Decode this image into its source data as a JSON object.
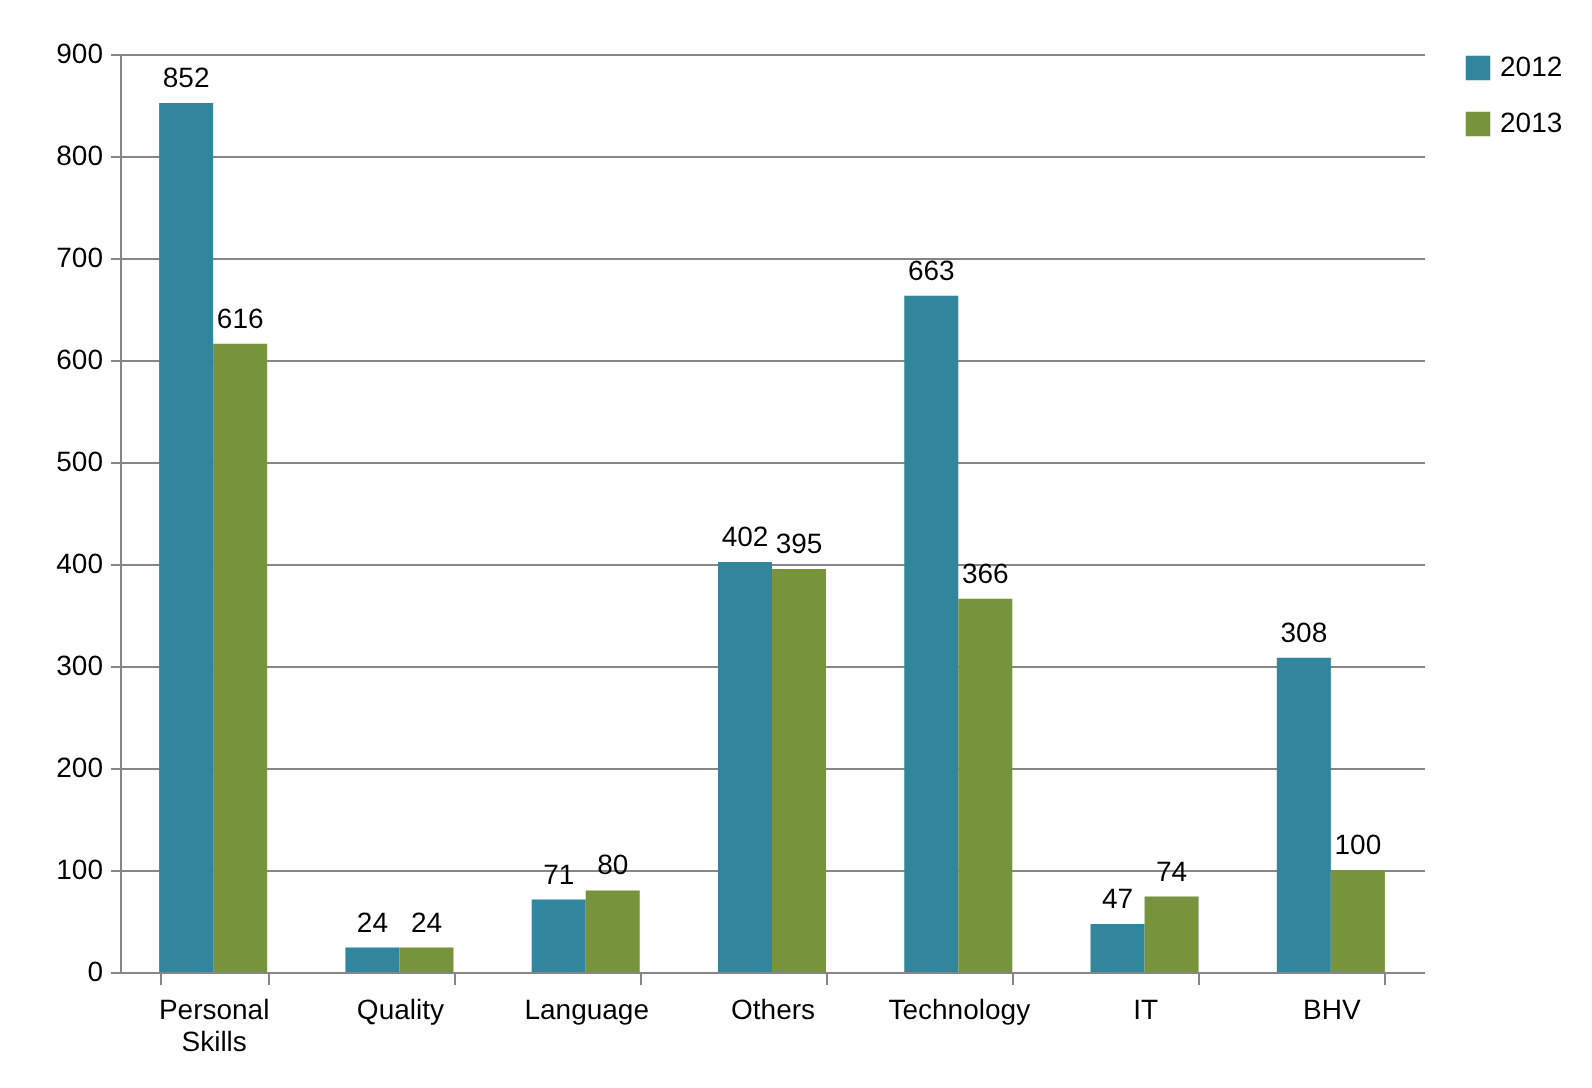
{
  "chart_data": {
    "type": "bar",
    "categories": [
      "Personal Skills",
      "Quality",
      "Language",
      "Others",
      "Technology",
      "IT",
      "BHV"
    ],
    "series": [
      {
        "name": "2012",
        "color": "#31859c",
        "values": [
          852,
          24,
          71,
          402,
          663,
          47,
          308
        ]
      },
      {
        "name": "2013",
        "color": "#77933c",
        "values": [
          616,
          24,
          80,
          395,
          366,
          74,
          100
        ]
      }
    ],
    "ylim": [
      0,
      900
    ],
    "yticks": [
      0,
      100,
      200,
      300,
      400,
      500,
      600,
      700,
      800,
      900
    ],
    "grid": "y",
    "legend": "right",
    "data_labels": true
  }
}
